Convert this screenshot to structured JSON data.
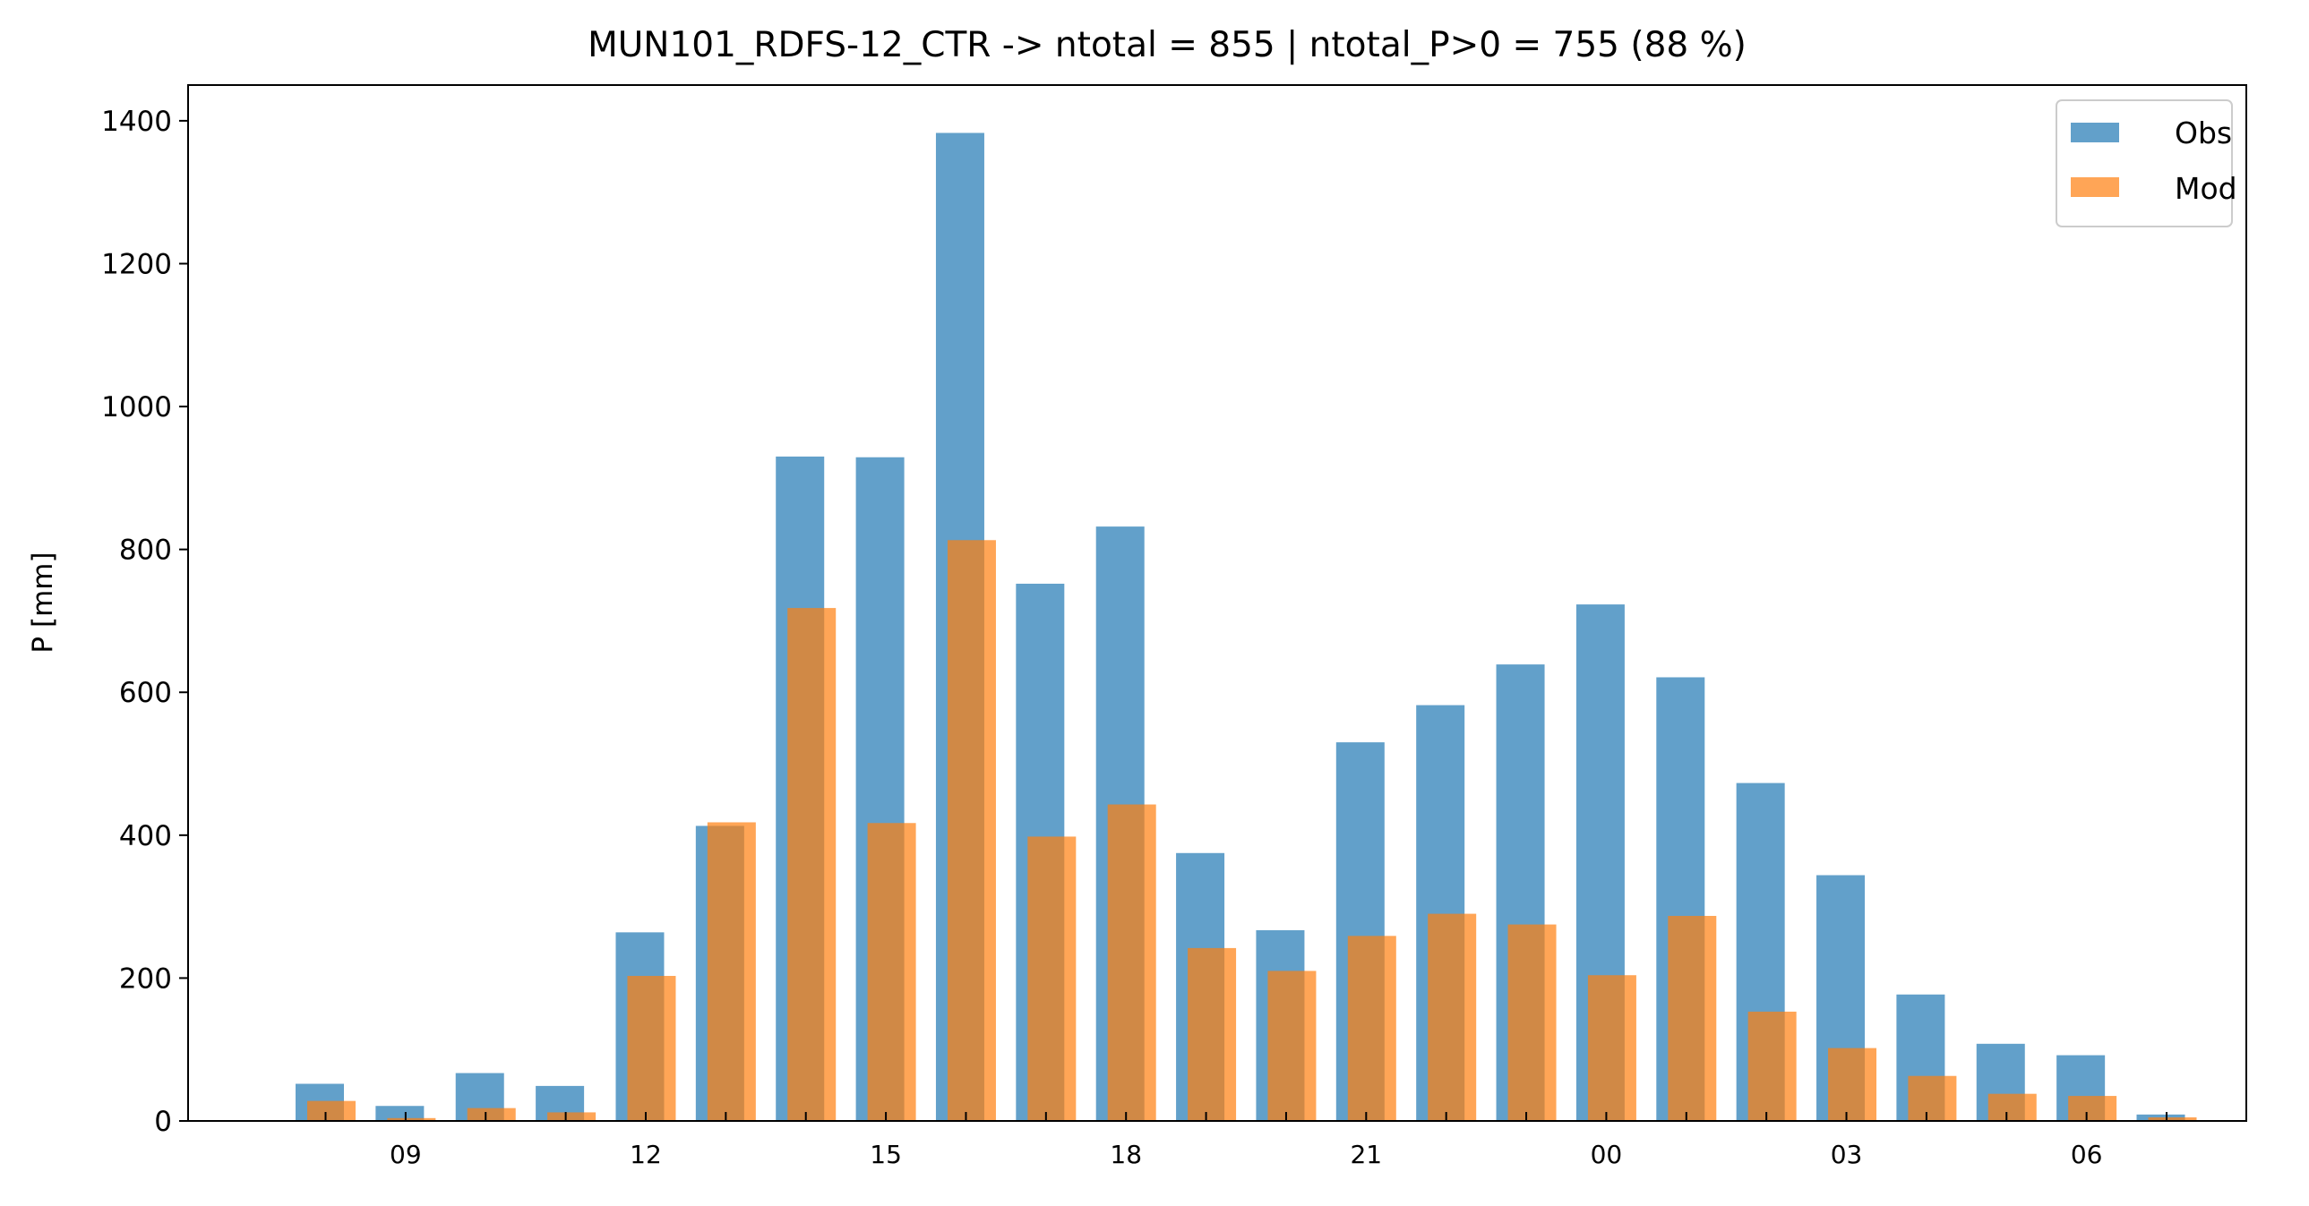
{
  "chart_data": {
    "type": "bar",
    "title": "MUN101_RDFS-12_CTR -> ntotal = 855 | ntotal_P>0 = 755 (88 %)",
    "xlabel": "",
    "ylabel": "P [mm]",
    "ylim": [
      0,
      1450
    ],
    "yticks": [
      0,
      200,
      400,
      600,
      800,
      1000,
      1200,
      1400
    ],
    "ytick_labels": [
      "0",
      "200",
      "400",
      "600",
      "800",
      "1000",
      "1200",
      "1400"
    ],
    "hours": [
      "08",
      "09",
      "10",
      "11",
      "12",
      "13",
      "14",
      "15",
      "16",
      "17",
      "18",
      "19",
      "20",
      "21",
      "22",
      "23",
      "00",
      "01",
      "02",
      "03",
      "04",
      "05",
      "06",
      "07"
    ],
    "xtick_labels": [
      {
        "hour_index": 1,
        "label": "09"
      },
      {
        "hour_index": 4,
        "label": "12"
      },
      {
        "hour_index": 7,
        "label": "15"
      },
      {
        "hour_index": 10,
        "label": "18"
      },
      {
        "hour_index": 13,
        "label": "21"
      },
      {
        "hour_index": 16,
        "label": "00"
      },
      {
        "hour_index": 19,
        "label": "03"
      },
      {
        "hour_index": 22,
        "label": "06"
      }
    ],
    "series": [
      {
        "name": "Obs",
        "color": "#1f77b4",
        "opacity": 0.7,
        "values": [
          52,
          21,
          67,
          49,
          264,
          413,
          930,
          929,
          1383,
          752,
          832,
          375,
          267,
          530,
          582,
          639,
          723,
          621,
          473,
          344,
          177,
          108,
          92,
          9
        ]
      },
      {
        "name": "Mod",
        "color": "#ff7f0e",
        "opacity": 0.7,
        "values": [
          28,
          4,
          18,
          12,
          203,
          418,
          718,
          417,
          813,
          398,
          443,
          242,
          210,
          259,
          290,
          275,
          204,
          287,
          153,
          102,
          63,
          38,
          35,
          5
        ]
      }
    ],
    "grid": false,
    "legend_position": "top-right"
  }
}
